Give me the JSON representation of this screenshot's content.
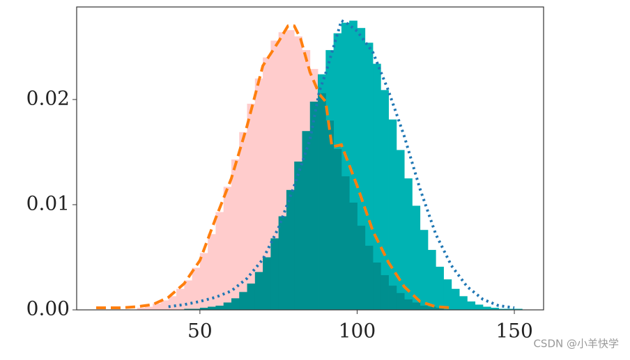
{
  "chart_data": {
    "type": "histogram",
    "xlim": [
      10.8,
      159.3
    ],
    "ylim": [
      0,
      0.0288
    ],
    "xticks": [
      50,
      100,
      150
    ],
    "yticks": [
      {
        "value": 0,
        "label": "0.00"
      },
      {
        "value": 0.01,
        "label": "0.01"
      },
      {
        "value": 0.02,
        "label": "0.02"
      }
    ],
    "watermark": "CSDN @小羊快学",
    "series": [
      {
        "type": "histogram",
        "color": "#ffcccc",
        "bins": [
          30,
          32.5,
          35,
          37.5,
          40,
          42.5,
          45,
          47.5,
          50,
          52.5,
          55,
          57.5,
          60,
          62.5,
          65,
          67.5,
          70,
          72.5,
          75,
          77.5,
          80,
          82.5,
          85,
          87.5,
          90,
          92.5,
          95,
          97.5,
          100,
          102.5,
          105,
          107.5,
          110,
          112.5,
          115,
          117.5,
          120,
          122.5,
          125,
          127.5
        ],
        "values": [
          0.0002,
          0.0003,
          0.0006,
          0.0009,
          0.0013,
          0.002,
          0.0028,
          0.004,
          0.0054,
          0.0072,
          0.0093,
          0.0117,
          0.0143,
          0.0169,
          0.0196,
          0.022,
          0.024,
          0.0256,
          0.0264,
          0.0266,
          0.026,
          0.0247,
          0.0229,
          0.0206,
          0.018,
          0.0153,
          0.0127,
          0.0102,
          0.008,
          0.0061,
          0.0045,
          0.0033,
          0.0023,
          0.0016,
          0.001,
          0.0007,
          0.0004,
          0.0003,
          0.0002
        ]
      },
      {
        "type": "histogram",
        "color": "#00b3b3",
        "bins": [
          45,
          47.5,
          50,
          52.5,
          55,
          57.5,
          60,
          62.5,
          65,
          67.5,
          70,
          72.5,
          75,
          77.5,
          80,
          82.5,
          85,
          87.5,
          90,
          92.5,
          95,
          97.5,
          100,
          102.5,
          105,
          107.5,
          110,
          112.5,
          115,
          117.5,
          120,
          122.5,
          125,
          127.5,
          130,
          132.5,
          135,
          137.5,
          140,
          142.5,
          145,
          147.5,
          150,
          152.5
        ],
        "values": [
          0.0001,
          0.0001,
          0.0002,
          0.0003,
          0.0004,
          0.0007,
          0.0011,
          0.0017,
          0.0025,
          0.0036,
          0.005,
          0.0068,
          0.0089,
          0.0114,
          0.0141,
          0.017,
          0.0198,
          0.0224,
          0.0247,
          0.0263,
          0.0273,
          0.0275,
          0.0268,
          0.0254,
          0.0234,
          0.0209,
          0.0181,
          0.0152,
          0.0125,
          0.0099,
          0.0076,
          0.0057,
          0.0041,
          0.0029,
          0.002,
          0.0013,
          0.0008,
          0.0005,
          0.0003,
          0.0002,
          0.0001,
          0.0001,
          0.0001
        ]
      },
      {
        "type": "line",
        "color": "#ff7f0e",
        "style": "dashed",
        "x": [
          17,
          25,
          30,
          35,
          40,
          45,
          50,
          55,
          60,
          65,
          70,
          75,
          78,
          80,
          82,
          85,
          88,
          90,
          92,
          95,
          100,
          105,
          110,
          115,
          120,
          125,
          130
        ],
        "values": [
          0.0002,
          0.0002,
          0.0003,
          0.0005,
          0.0012,
          0.0025,
          0.0047,
          0.0087,
          0.0125,
          0.0175,
          0.0232,
          0.0255,
          0.027,
          0.027,
          0.0258,
          0.0226,
          0.0205,
          0.0198,
          0.0155,
          0.0157,
          0.0118,
          0.0075,
          0.0045,
          0.0022,
          0.0008,
          0.0003,
          0.0002
        ]
      },
      {
        "type": "line",
        "color": "#1f77b4",
        "style": "dotted",
        "x": [
          40,
          45,
          50,
          55,
          60,
          65,
          70,
          75,
          80,
          85,
          88,
          90,
          92,
          95,
          97,
          100,
          105,
          110,
          115,
          120,
          125,
          130,
          135,
          140,
          145,
          150
        ],
        "values": [
          0.0003,
          0.0005,
          0.0008,
          0.0012,
          0.0018,
          0.003,
          0.0048,
          0.0078,
          0.0118,
          0.0162,
          0.0208,
          0.0225,
          0.0245,
          0.0275,
          0.0272,
          0.0265,
          0.0245,
          0.0208,
          0.0165,
          0.0115,
          0.0072,
          0.0042,
          0.0022,
          0.001,
          0.0004,
          0.0002
        ]
      }
    ]
  }
}
